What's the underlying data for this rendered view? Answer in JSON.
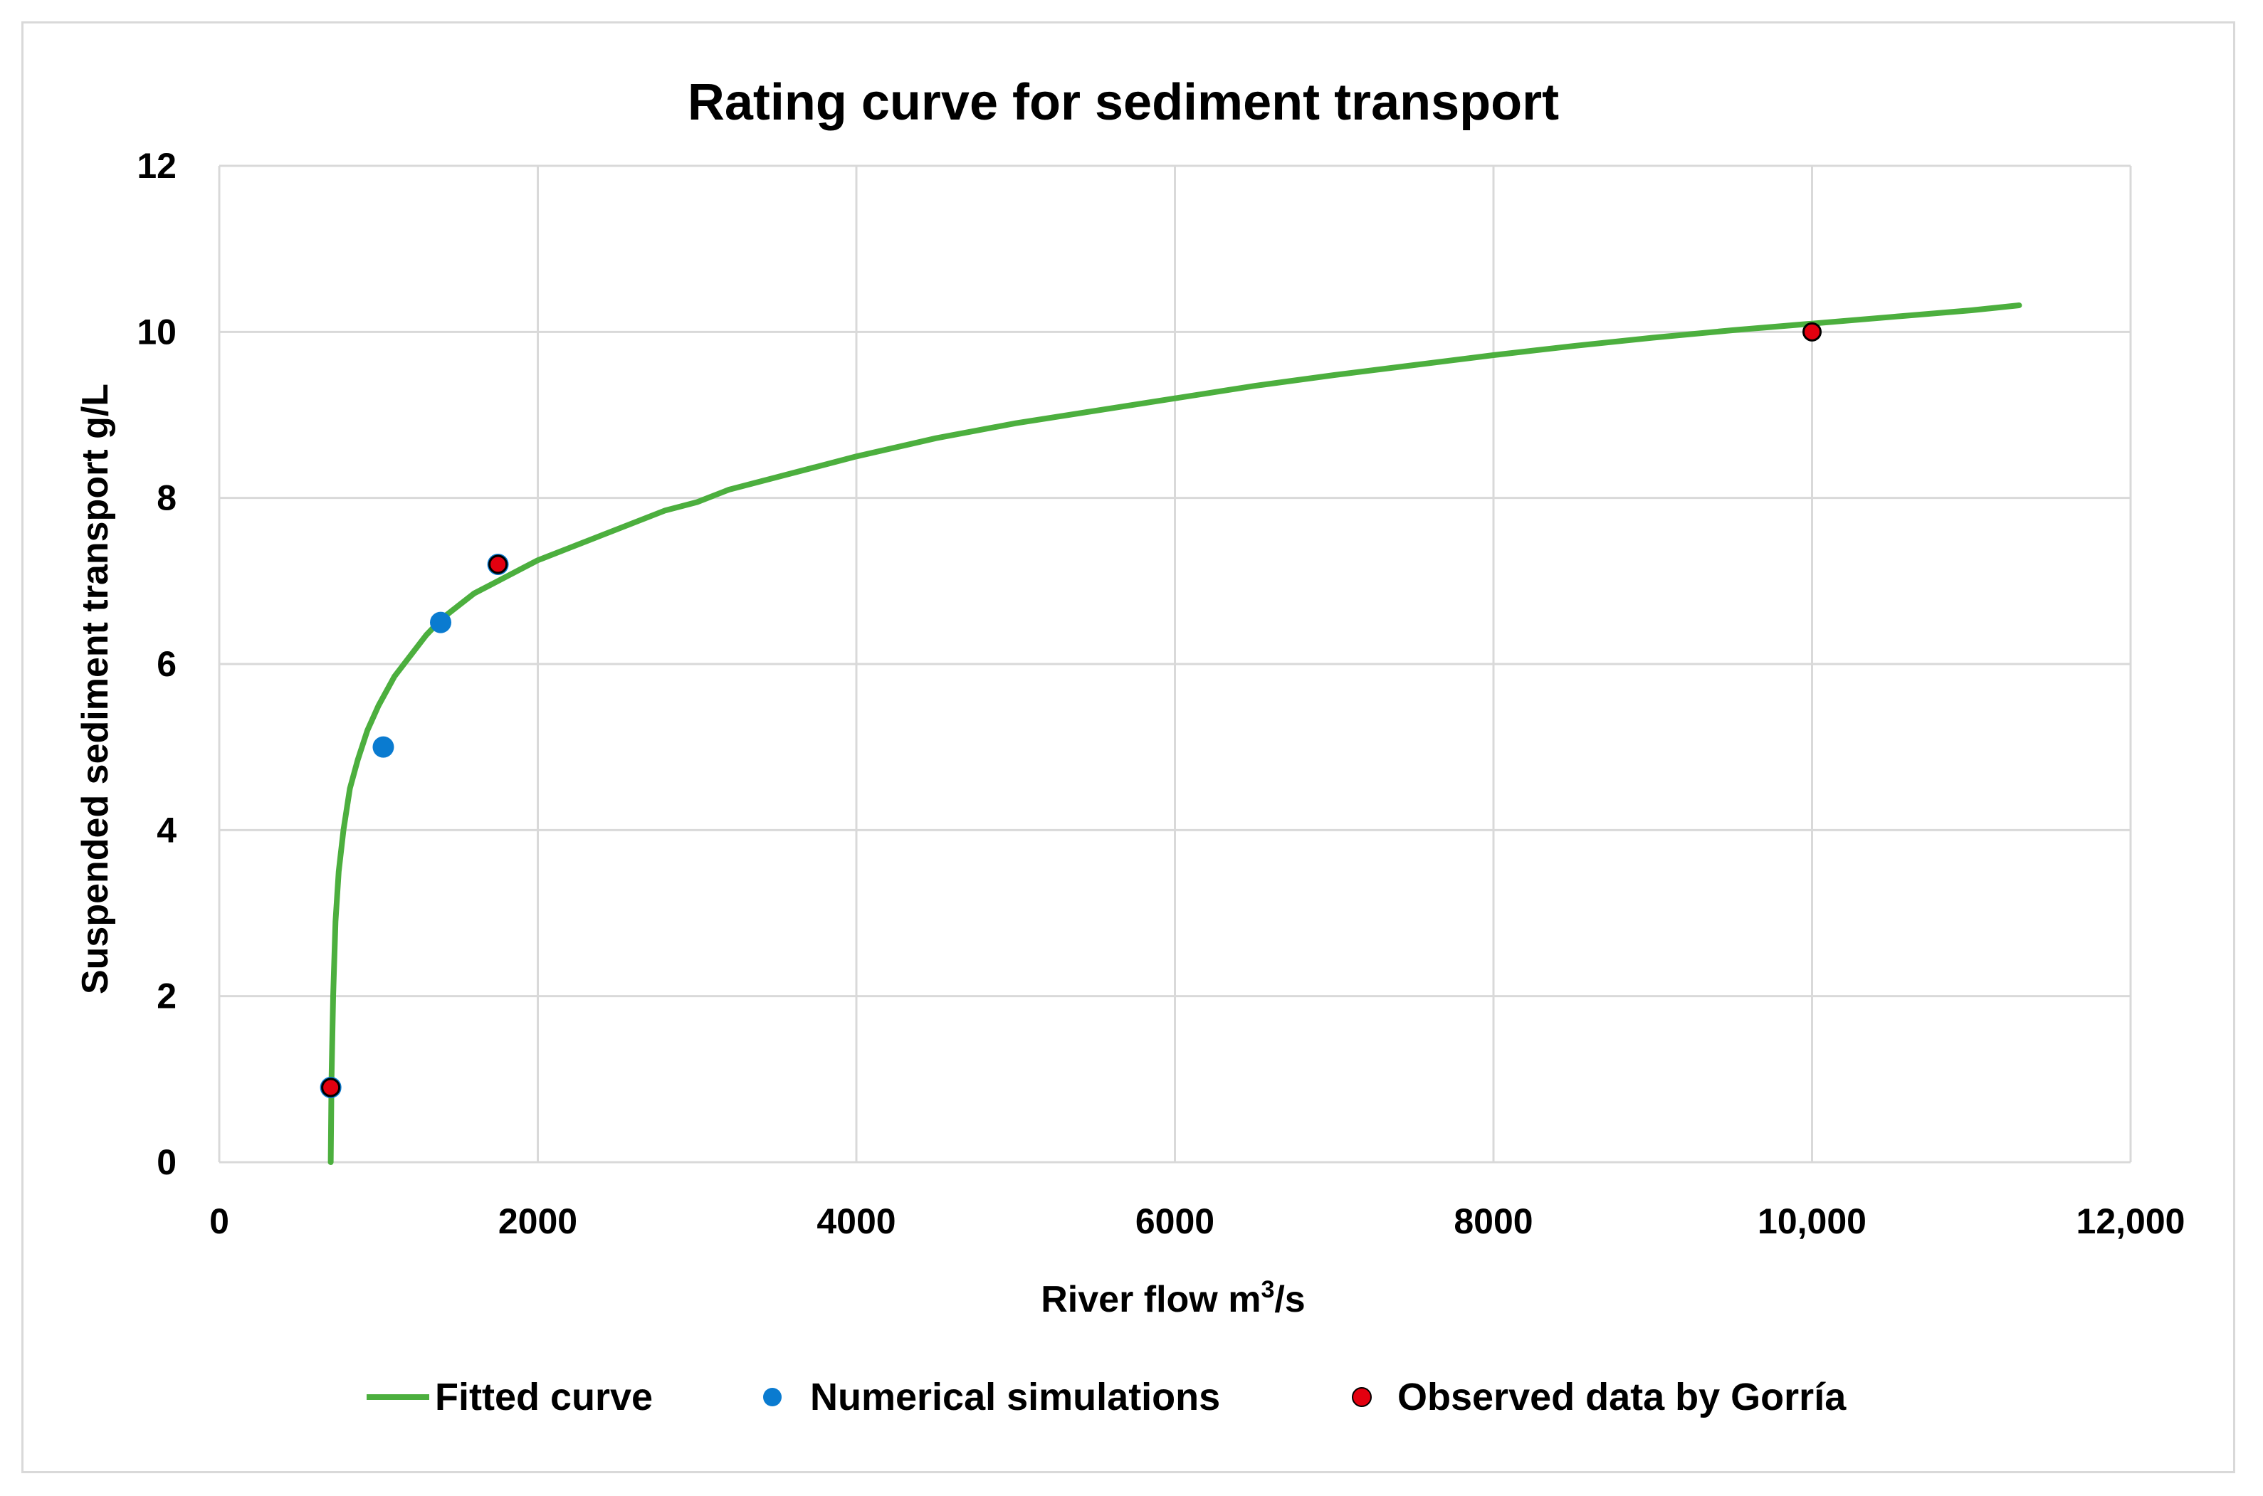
{
  "chart_data": {
    "type": "scatter",
    "title": "Rating curve for sediment transport",
    "xlabel": "River flow m³/s",
    "xlabel_main": "River flow m",
    "xlabel_sup": "3",
    "xlabel_tail": "/s",
    "ylabel": "Suspended sediment transport g/L",
    "xlim": [
      0,
      12000
    ],
    "ylim": [
      0,
      12
    ],
    "xticks": [
      0,
      2000,
      4000,
      6000,
      8000,
      10000,
      12000
    ],
    "xtick_labels": [
      "0",
      "2000",
      "4000",
      "6000",
      "8000",
      "10,000",
      "12,000"
    ],
    "yticks": [
      0,
      2,
      4,
      6,
      8,
      10,
      12
    ],
    "ytick_labels": [
      "0",
      "2",
      "4",
      "6",
      "8",
      "10",
      "12"
    ],
    "grid": true,
    "legend_position": "bottom",
    "series": [
      {
        "name": "Fitted curve",
        "kind": "line",
        "color": "#4caf3e",
        "x": [
          700,
          705,
          715,
          730,
          750,
          780,
          820,
          870,
          930,
          1000,
          1100,
          1200,
          1300,
          1400,
          1500,
          1600,
          1700,
          1800,
          1900,
          2000,
          2200,
          2400,
          2600,
          2800,
          3000,
          3200,
          3500,
          4000,
          4500,
          5000,
          5500,
          6000,
          6500,
          7000,
          7500,
          8000,
          8500,
          9000,
          9500,
          10000,
          10500,
          11000,
          11300
        ],
        "y": [
          0,
          1.0,
          2.0,
          2.9,
          3.5,
          4.0,
          4.5,
          4.85,
          5.2,
          5.5,
          5.85,
          6.1,
          6.35,
          6.55,
          6.7,
          6.85,
          6.95,
          7.05,
          7.15,
          7.25,
          7.4,
          7.55,
          7.7,
          7.85,
          7.95,
          8.1,
          8.25,
          8.5,
          8.72,
          8.9,
          9.05,
          9.2,
          9.35,
          9.48,
          9.6,
          9.72,
          9.83,
          9.93,
          10.02,
          10.1,
          10.18,
          10.26,
          10.32
        ]
      },
      {
        "name": "Numerical simulations",
        "kind": "scatter",
        "color": "#0a7bd0",
        "x": [
          700,
          1030,
          1390,
          1750
        ],
        "y": [
          0.9,
          5.0,
          6.5,
          7.2
        ]
      },
      {
        "name": "Observed data by Gorría",
        "kind": "scatter",
        "color": "#e3000f",
        "x": [
          700,
          1750,
          10000
        ],
        "y": [
          0.9,
          7.2,
          10.0
        ]
      }
    ]
  }
}
